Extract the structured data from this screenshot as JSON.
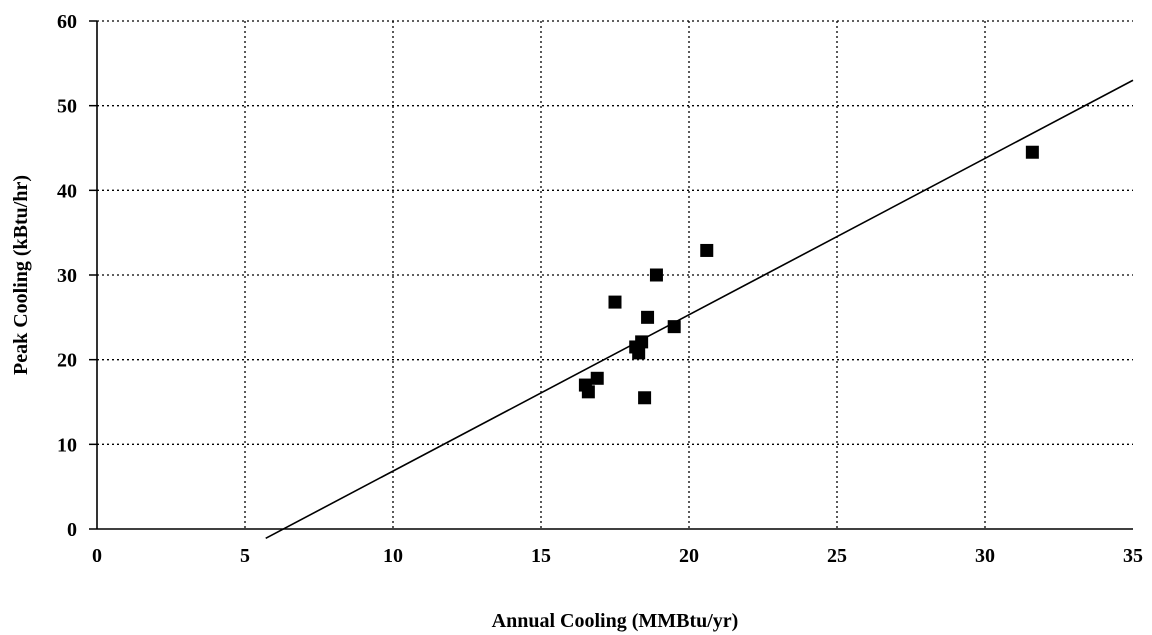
{
  "chart_data": {
    "type": "scatter",
    "title": "",
    "xlabel": "Annual Cooling (MMBtu/yr)",
    "ylabel": "Peak Cooling (kBtu/hr)",
    "xlim": [
      0,
      35
    ],
    "ylim": [
      0,
      60
    ],
    "x_ticks": [
      "0",
      "5",
      "10",
      "15",
      "20",
      "25",
      "30",
      "35"
    ],
    "y_ticks": [
      "0",
      "10",
      "20",
      "30",
      "40",
      "50",
      "60"
    ],
    "grid": true,
    "legend": "none",
    "series": [
      {
        "marker": "square",
        "color": "#000000",
        "points": [
          {
            "x": 16.5,
            "y": 17.0
          },
          {
            "x": 16.6,
            "y": 16.2
          },
          {
            "x": 16.9,
            "y": 17.8
          },
          {
            "x": 17.5,
            "y": 26.8
          },
          {
            "x": 18.2,
            "y": 21.5
          },
          {
            "x": 18.3,
            "y": 20.8
          },
          {
            "x": 18.4,
            "y": 22.1
          },
          {
            "x": 18.5,
            "y": 15.5
          },
          {
            "x": 18.6,
            "y": 25.0
          },
          {
            "x": 18.9,
            "y": 30.0
          },
          {
            "x": 19.5,
            "y": 23.9
          },
          {
            "x": 20.6,
            "y": 32.9
          },
          {
            "x": 31.6,
            "y": 44.5
          }
        ]
      }
    ],
    "trendline": {
      "type": "linear",
      "x_start": 5.7,
      "x_end": 35,
      "y_start": -1.1,
      "y_end": 53.0
    }
  }
}
